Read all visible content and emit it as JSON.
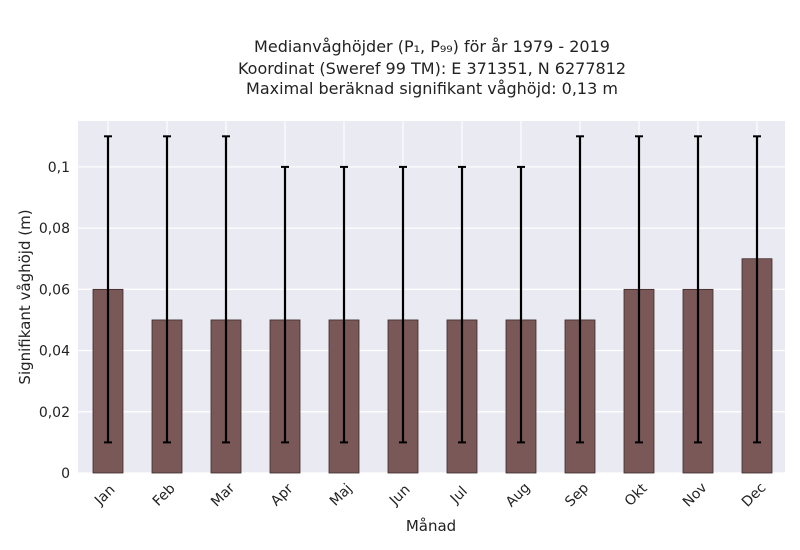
{
  "chart_data": {
    "type": "bar",
    "title_lines": [
      "Medianvåghöjder (P₁, P₉₉) för år 1979 - 2019",
      "Koordinat (Sweref 99 TM): E 371351, N 6277812",
      "Maximal beräknad signifikant våghöjd: 0,13 m"
    ],
    "xlabel": "Månad",
    "ylabel": "Signifikant våghöjd (m)",
    "categories": [
      "Jan",
      "Feb",
      "Mar",
      "Apr",
      "Maj",
      "Jun",
      "Jul",
      "Aug",
      "Sep",
      "Okt",
      "Nov",
      "Dec"
    ],
    "values": [
      0.06,
      0.05,
      0.05,
      0.05,
      0.05,
      0.05,
      0.05,
      0.05,
      0.05,
      0.06,
      0.06,
      0.07
    ],
    "error_low": [
      0.01,
      0.01,
      0.01,
      0.01,
      0.01,
      0.01,
      0.01,
      0.01,
      0.01,
      0.01,
      0.01,
      0.01
    ],
    "error_high": [
      0.11,
      0.11,
      0.11,
      0.1,
      0.1,
      0.1,
      0.1,
      0.1,
      0.11,
      0.11,
      0.11,
      0.11
    ],
    "ylim": [
      0,
      0.115
    ],
    "yticks": [
      0,
      0.02,
      0.04,
      0.06,
      0.08,
      0.1
    ],
    "ytick_labels": [
      "0",
      "0,02",
      "0,04",
      "0,06",
      "0,08",
      "0,1"
    ],
    "grid": true,
    "colors": {
      "background": "#eaeaf2",
      "grid": "#ffffff",
      "bar_fill": "#7b5858",
      "bar_edge": "#3a2a2a",
      "error_bar": "#000000"
    }
  }
}
